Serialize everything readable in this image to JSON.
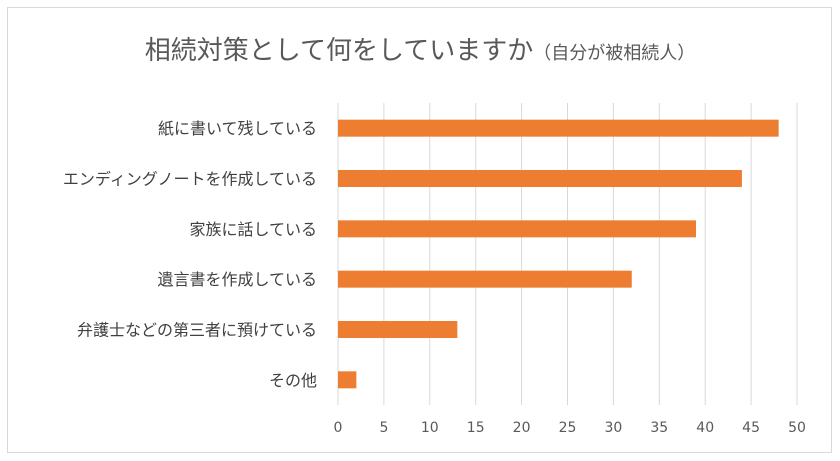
{
  "chart_data": {
    "type": "bar",
    "orientation": "horizontal",
    "title": "相続対策として何をしていますか",
    "subtitle": "（自分が被相続人）",
    "categories": [
      "紙に書いて残している",
      "エンディングノートを作成している",
      "家族に話している",
      "遺言書を作成している",
      "弁護士などの第三者に預けている",
      "その他"
    ],
    "values": [
      48,
      44,
      39,
      32,
      13,
      2
    ],
    "xlim": [
      0,
      50
    ],
    "xticks": [
      "0",
      "5",
      "10",
      "15",
      "20",
      "25",
      "30",
      "35",
      "40",
      "45",
      "50"
    ],
    "grid": "vertical",
    "bar_color": "#ED7D31",
    "grid_color": "#D9D9D9",
    "text_color": "#595959"
  }
}
